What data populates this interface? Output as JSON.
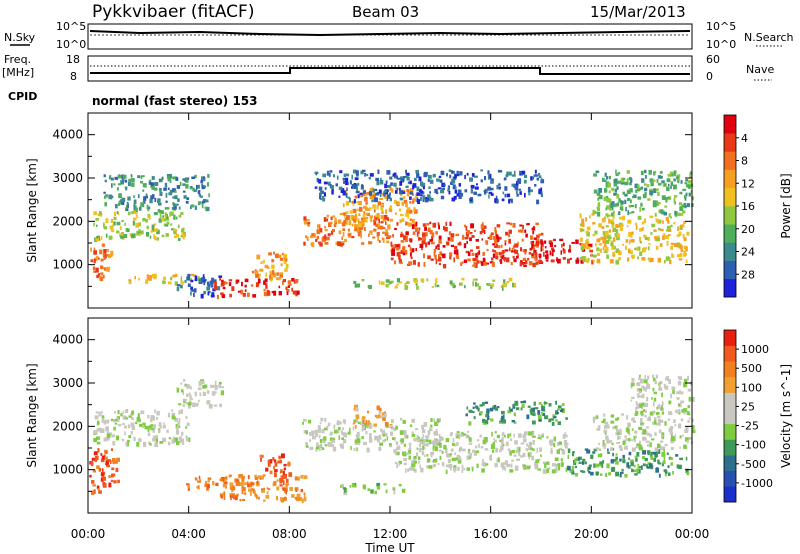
{
  "header": {
    "radar": "Pykkvibaer (fitACF)",
    "beam": "Beam 03",
    "date": "15/Mar/2013"
  },
  "strips": {
    "nsky_label": "N.Sky",
    "nsky_ticks": [
      "10^5",
      "10^0"
    ],
    "nsearch_ticks": [
      "10^5",
      "10^0"
    ],
    "nsearch_label": "N.Search",
    "freq_label_1": "Freq.",
    "freq_label_2": "[MHz]",
    "freq_ticks": [
      "18",
      "8"
    ],
    "nave_ticks": [
      "60",
      "0"
    ],
    "nave_label": "Nave",
    "cpid_label": "CPID",
    "cpid_value": "normal (fast stereo) 153"
  },
  "chart_data": [
    {
      "type": "heatmap",
      "name": "power",
      "ylabel": "Slant Range [km]",
      "yticks": [
        "1000",
        "2000",
        "3000",
        "4000"
      ],
      "ylim": [
        0,
        4500
      ],
      "colorbar_label": "Power [dB]",
      "colorbar_ticks": [
        "4",
        "8",
        "12",
        "16",
        "20",
        "24",
        "28"
      ],
      "colorbar_colors": [
        "#1e22d8",
        "#2f5fb0",
        "#3d8a8e",
        "#4fae5c",
        "#8fc840",
        "#f0c020",
        "#f5a020",
        "#f07020",
        "#e83818",
        "#e00010"
      ],
      "regions": [
        {
          "t0": 0.0,
          "t1": 0.9,
          "r0": 700,
          "r1": 1500,
          "level": 7
        },
        {
          "t0": 0.2,
          "t1": 3.8,
          "r0": 1600,
          "r1": 2300,
          "level": 4
        },
        {
          "t0": 0.6,
          "t1": 4.8,
          "r0": 2300,
          "r1": 3100,
          "level": 2
        },
        {
          "t0": 1.5,
          "t1": 4.5,
          "r0": 600,
          "r1": 800,
          "level": 5
        },
        {
          "t0": 3.5,
          "t1": 5.2,
          "r0": 300,
          "r1": 800,
          "level": 1
        },
        {
          "t0": 5.0,
          "t1": 8.3,
          "r0": 300,
          "r1": 700,
          "level": 8
        },
        {
          "t0": 6.5,
          "t1": 7.9,
          "r0": 700,
          "r1": 1300,
          "level": 6
        },
        {
          "t0": 8.5,
          "t1": 12.0,
          "r0": 1500,
          "r1": 2200,
          "level": 7
        },
        {
          "t0": 10.0,
          "t1": 13.0,
          "r0": 1900,
          "r1": 2800,
          "level": 6
        },
        {
          "t0": 12.0,
          "t1": 18.0,
          "r0": 1000,
          "r1": 2000,
          "level": 8
        },
        {
          "t0": 17.5,
          "t1": 20.0,
          "r0": 1100,
          "r1": 1600,
          "level": 9
        },
        {
          "t0": 19.5,
          "t1": 23.8,
          "r0": 1100,
          "r1": 2200,
          "level": 5
        },
        {
          "t0": 20.0,
          "t1": 24.0,
          "r0": 2200,
          "r1": 3200,
          "level": 3
        },
        {
          "t0": 9.0,
          "t1": 18.0,
          "r0": 2500,
          "r1": 3200,
          "level": 1
        },
        {
          "t0": 10.5,
          "t1": 17.0,
          "r0": 500,
          "r1": 700,
          "level": 4
        }
      ]
    },
    {
      "type": "heatmap",
      "name": "velocity",
      "ylabel": "Slant Range [km]",
      "yticks": [
        "1000",
        "2000",
        "3000",
        "4000"
      ],
      "ylim": [
        0,
        4500
      ],
      "colorbar_label": "Velocity [m s^-1]",
      "colorbar_ticks": [
        "1000",
        "500",
        "100",
        "25",
        "-25",
        "-100",
        "-500",
        "-1000"
      ],
      "colorbar_colors": [
        "#1a30c8",
        "#2850b0",
        "#2f6f8e",
        "#3f9a5a",
        "#7fcc40",
        "#c8c8c0",
        "#c8c8c0",
        "#f0a030",
        "#f08020",
        "#f05a20",
        "#e82010"
      ],
      "regions": [
        {
          "t0": 0.0,
          "t1": 1.2,
          "r0": 500,
          "r1": 1500,
          "level": 9
        },
        {
          "t0": 0.2,
          "t1": 4.0,
          "r0": 1600,
          "r1": 2400,
          "level": 5
        },
        {
          "t0": 3.5,
          "t1": 5.3,
          "r0": 2500,
          "r1": 3100,
          "level": 5
        },
        {
          "t0": 3.8,
          "t1": 6.5,
          "r0": 600,
          "r1": 900,
          "level": 8
        },
        {
          "t0": 5.2,
          "t1": 8.8,
          "r0": 300,
          "r1": 900,
          "level": 8
        },
        {
          "t0": 6.8,
          "t1": 8.0,
          "r0": 900,
          "r1": 1400,
          "level": 9
        },
        {
          "t0": 8.5,
          "t1": 14.0,
          "r0": 1500,
          "r1": 2200,
          "level": 5
        },
        {
          "t0": 10.5,
          "t1": 12.0,
          "r0": 2000,
          "r1": 2500,
          "level": 7
        },
        {
          "t0": 12.0,
          "t1": 19.0,
          "r0": 1000,
          "r1": 1900,
          "level": 5
        },
        {
          "t0": 19.0,
          "t1": 23.8,
          "r0": 900,
          "r1": 1500,
          "level": 3
        },
        {
          "t0": 20.0,
          "t1": 24.0,
          "r0": 1500,
          "r1": 2300,
          "level": 5
        },
        {
          "t0": 21.5,
          "t1": 24.0,
          "r0": 2300,
          "r1": 3200,
          "level": 5
        },
        {
          "t0": 15.0,
          "t1": 19.0,
          "r0": 2100,
          "r1": 2600,
          "level": 3
        },
        {
          "t0": 10.0,
          "t1": 12.5,
          "r0": 500,
          "r1": 700,
          "level": 4
        }
      ]
    }
  ],
  "xaxis": {
    "ticks": [
      "00:00",
      "04:00",
      "08:00",
      "12:00",
      "16:00",
      "20:00",
      "00:00"
    ],
    "label": "Time UT",
    "xlim": [
      0,
      24
    ]
  }
}
